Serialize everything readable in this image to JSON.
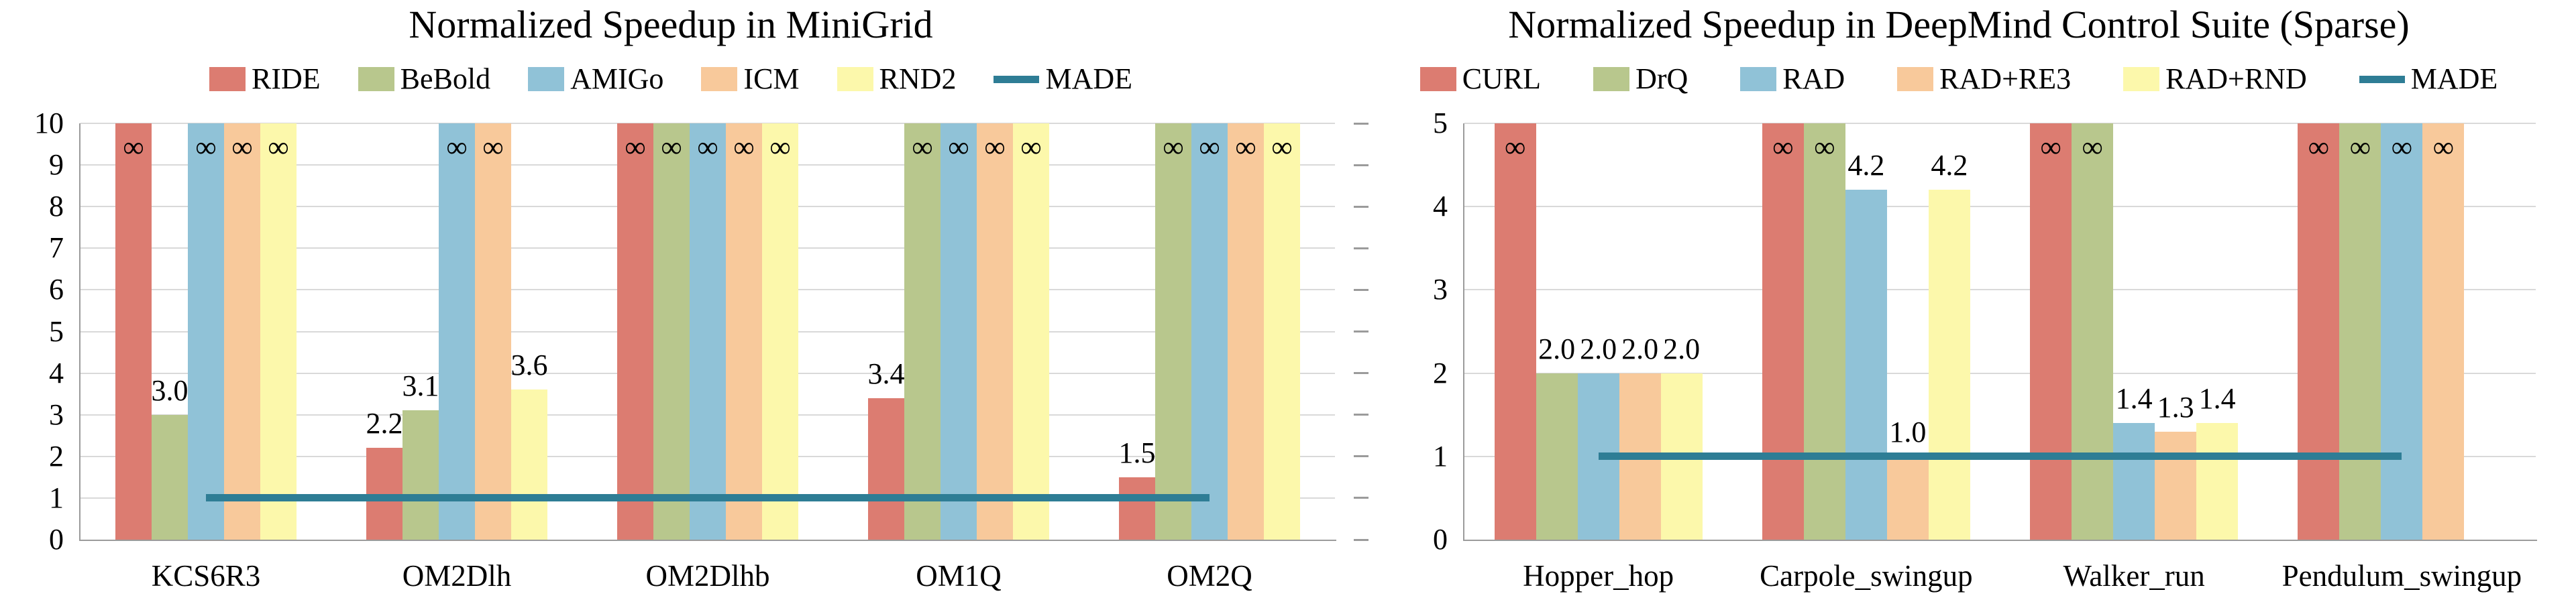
{
  "charts": [
    {
      "title": "Normalized Speedup in MiniGrid",
      "chart_data": {
        "type": "bar",
        "categories": [
          "KCS6R3",
          "OM2Dlh",
          "OM2Dlhb",
          "OM1Q",
          "OM2Q"
        ],
        "ylim": [
          0,
          10
        ],
        "ytick_step": 1,
        "grid": "horizontal",
        "legend_position": "top",
        "infinity_symbol": "∞",
        "series": [
          {
            "name": "RIDE",
            "color": "#dc7c71",
            "values": [
              "inf",
              2.2,
              "inf",
              3.4,
              1.5
            ]
          },
          {
            "name": "BeBold",
            "color": "#b8c78d",
            "values": [
              3.0,
              3.1,
              "inf",
              "inf",
              "inf"
            ]
          },
          {
            "name": "AMIGo",
            "color": "#90c2d7",
            "values": [
              "inf",
              "inf",
              "inf",
              "inf",
              "inf"
            ]
          },
          {
            "name": "ICM",
            "color": "#f8c99b",
            "values": [
              "inf",
              "inf",
              "inf",
              "inf",
              "inf"
            ]
          },
          {
            "name": "RND2",
            "color": "#fcf8ab",
            "values": [
              "inf",
              3.6,
              "inf",
              "inf",
              "inf"
            ]
          }
        ],
        "reference_line": {
          "name": "MADE",
          "color": "#2e7d95",
          "value": 1.0
        }
      }
    },
    {
      "title": "Normalized Speedup in DeepMind Control Suite (Sparse)",
      "chart_data": {
        "type": "bar",
        "categories": [
          "Hopper_hop",
          "Carpole_swingup",
          "Walker_run",
          "Pendulum_swingup"
        ],
        "ylim": [
          0,
          5
        ],
        "ytick_step": 1,
        "minor_tick_step": 0.5,
        "grid": "horizontal",
        "legend_position": "top",
        "infinity_symbol": "∞",
        "series": [
          {
            "name": "CURL",
            "color": "#dc7c71",
            "values": [
              "inf",
              "inf",
              "inf",
              "inf"
            ]
          },
          {
            "name": "DrQ",
            "color": "#b8c78d",
            "values": [
              2.0,
              "inf",
              "inf",
              "inf"
            ]
          },
          {
            "name": "RAD",
            "color": "#90c2d7",
            "values": [
              2.0,
              4.2,
              1.4,
              "inf"
            ]
          },
          {
            "name": "RAD+RE3",
            "color": "#f8c99b",
            "values": [
              2.0,
              1.0,
              1.3,
              "inf"
            ]
          },
          {
            "name": "RAD+RND",
            "color": "#fcf8ab",
            "values": [
              2.0,
              4.2,
              1.4,
              null
            ]
          }
        ],
        "reference_line": {
          "name": "MADE",
          "color": "#2e7d95",
          "value": 1.0
        }
      }
    }
  ]
}
